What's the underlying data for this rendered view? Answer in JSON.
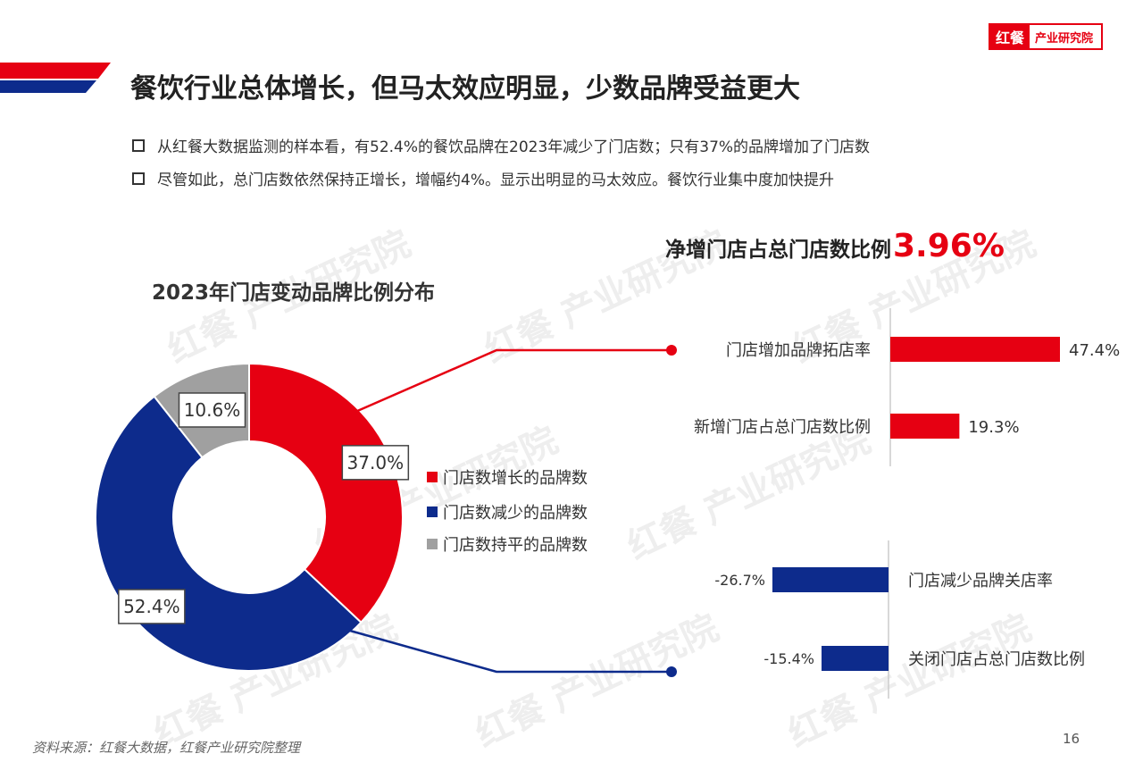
{
  "brand": {
    "logo_left": "红餐",
    "logo_right": "产业研究院",
    "red": "#e60012",
    "blue": "#0d2b8c",
    "gray": "#a0a0a0"
  },
  "title": "餐饮行业总体增长，但马太效应明显，少数品牌受益更大",
  "bullets": [
    "从红餐大数据监测的样本看，有52.4%的餐饮品牌在2023年减少了门店数；只有37%的品牌增加了门店数",
    "尽管如此，总门店数依然保持正增长，增幅约4%。显示出明显的马太效应。餐饮行业集中度加快提升"
  ],
  "watermark_text": "红餐 产业研究院",
  "net_increase": {
    "label": "净增门店占总门店数比例",
    "value": "3.96%"
  },
  "source": "资料来源：红餐大数据，红餐产业研究院整理",
  "page_number": "16",
  "chart_data": [
    {
      "type": "pie",
      "title": "2023年门店变动品牌比例分布",
      "categories": [
        "门店数增长的品牌数",
        "门店数减少的品牌数",
        "门店数持平的品牌数"
      ],
      "values": [
        37.0,
        52.4,
        10.6
      ],
      "labels": [
        "37.0%",
        "52.4%",
        "10.6%"
      ],
      "colors": [
        "#e60012",
        "#0d2b8c",
        "#a0a0a0"
      ],
      "legend": "right"
    },
    {
      "type": "bar",
      "orientation": "horizontal",
      "categories": [
        "门店增加品牌拓店率",
        "新增门店占总门店数比例"
      ],
      "values": [
        47.4,
        19.3
      ],
      "labels": [
        "47.4%",
        "19.3%"
      ],
      "color": "#e60012"
    },
    {
      "type": "bar",
      "orientation": "horizontal",
      "categories": [
        "门店减少品牌关店率",
        "关闭门店占总门店数比例"
      ],
      "values": [
        -26.7,
        -15.4
      ],
      "labels": [
        "-26.7%",
        "-15.4%"
      ],
      "color": "#0d2b8c"
    }
  ]
}
